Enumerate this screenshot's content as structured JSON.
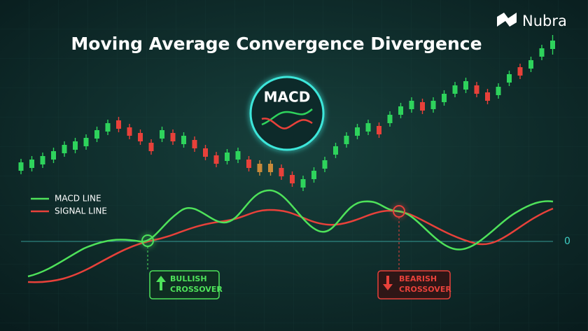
{
  "brand": "Nubra",
  "title": "Moving Average Convergence Divergence",
  "badge": "MACD",
  "legend": [
    "MACD LINE",
    "SIGNAL LINE"
  ],
  "zero_label": 0,
  "annotations": [
    {
      "line1": "BULLISH",
      "line2": "CROSSOVER"
    },
    {
      "line1": "BEARISH",
      "line2": "CROSSOVER"
    }
  ]
}
